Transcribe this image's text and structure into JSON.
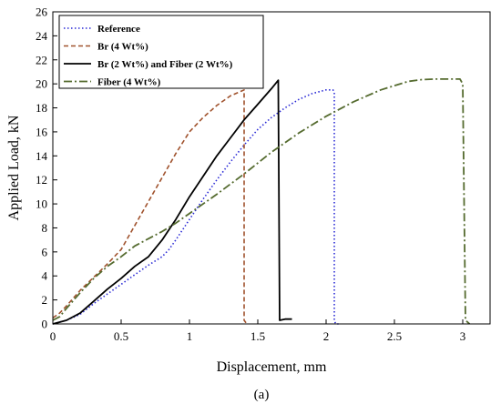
{
  "chart_data": {
    "type": "line",
    "title": "",
    "xlabel": "Displacement, mm",
    "ylabel": "Applied Load, kN",
    "xlim": [
      0,
      3.2
    ],
    "ylim": [
      0,
      26
    ],
    "xticks": [
      0,
      0.5,
      1,
      1.5,
      2,
      2.5,
      3
    ],
    "xtick_labels": [
      "0",
      "0.5",
      "1",
      "1.5",
      "2",
      "2.5",
      "3"
    ],
    "yticks": [
      0,
      2,
      4,
      6,
      8,
      10,
      12,
      14,
      16,
      18,
      20,
      22,
      24,
      26
    ],
    "grid": false,
    "legend_position": "top-left",
    "caption": "(a)",
    "series": [
      {
        "name": "Reference",
        "color": "#2b2bd6",
        "style": "dotted",
        "x": [
          0,
          0.1,
          0.2,
          0.3,
          0.4,
          0.5,
          0.6,
          0.7,
          0.8,
          0.85,
          0.9,
          1.0,
          1.1,
          1.2,
          1.3,
          1.4,
          1.5,
          1.6,
          1.7,
          1.8,
          1.9,
          2.0,
          2.05,
          2.06,
          2.06,
          2.07,
          2.1
        ],
        "y": [
          0,
          0.3,
          0.8,
          1.7,
          2.5,
          3.3,
          4.1,
          4.9,
          5.6,
          6.2,
          7.0,
          8.7,
          10.4,
          12.0,
          13.5,
          14.9,
          16.2,
          17.2,
          18.0,
          18.7,
          19.2,
          19.5,
          19.5,
          19.3,
          0.3,
          0,
          0
        ]
      },
      {
        "name": "Br (4 Wt%)",
        "color": "#a0522d",
        "style": "dashed",
        "x": [
          0,
          0.05,
          0.1,
          0.2,
          0.3,
          0.4,
          0.5,
          0.6,
          0.7,
          0.8,
          0.9,
          1.0,
          1.1,
          1.2,
          1.3,
          1.38,
          1.4,
          1.4,
          1.42
        ],
        "y": [
          0.5,
          0.9,
          1.5,
          2.8,
          3.9,
          5.0,
          6.2,
          8.2,
          10.2,
          12.2,
          14.2,
          16.0,
          17.2,
          18.2,
          19.0,
          19.4,
          19.5,
          0.3,
          0
        ]
      },
      {
        "name": "Br (2 Wt%) and Fiber (2 Wt%)",
        "color": "#000000",
        "style": "solid",
        "x": [
          0,
          0.1,
          0.2,
          0.3,
          0.4,
          0.5,
          0.6,
          0.7,
          0.8,
          0.9,
          1.0,
          1.1,
          1.2,
          1.3,
          1.4,
          1.5,
          1.6,
          1.65,
          1.65,
          1.66,
          1.7,
          1.75
        ],
        "y": [
          0,
          0.3,
          0.9,
          1.9,
          2.9,
          3.8,
          4.8,
          5.6,
          7.0,
          8.7,
          10.6,
          12.3,
          14.0,
          15.5,
          17.0,
          18.3,
          19.6,
          20.3,
          20.0,
          0.3,
          0.4,
          0.4
        ]
      },
      {
        "name": "Fiber (4 Wt%)",
        "color": "#556b2f",
        "style": "dashdot",
        "x": [
          0,
          0.05,
          0.1,
          0.2,
          0.3,
          0.4,
          0.5,
          0.6,
          0.7,
          0.8,
          0.9,
          1.0,
          1.2,
          1.4,
          1.6,
          1.8,
          2.0,
          2.2,
          2.4,
          2.6,
          2.7,
          2.8,
          2.9,
          2.98,
          3.0,
          3.02,
          3.05
        ],
        "y": [
          0.3,
          0.6,
          1.3,
          2.6,
          3.8,
          4.8,
          5.6,
          6.5,
          7.1,
          7.7,
          8.4,
          9.2,
          10.8,
          12.5,
          14.3,
          15.9,
          17.3,
          18.5,
          19.5,
          20.2,
          20.35,
          20.4,
          20.4,
          20.4,
          20.0,
          0.3,
          0
        ]
      }
    ]
  }
}
